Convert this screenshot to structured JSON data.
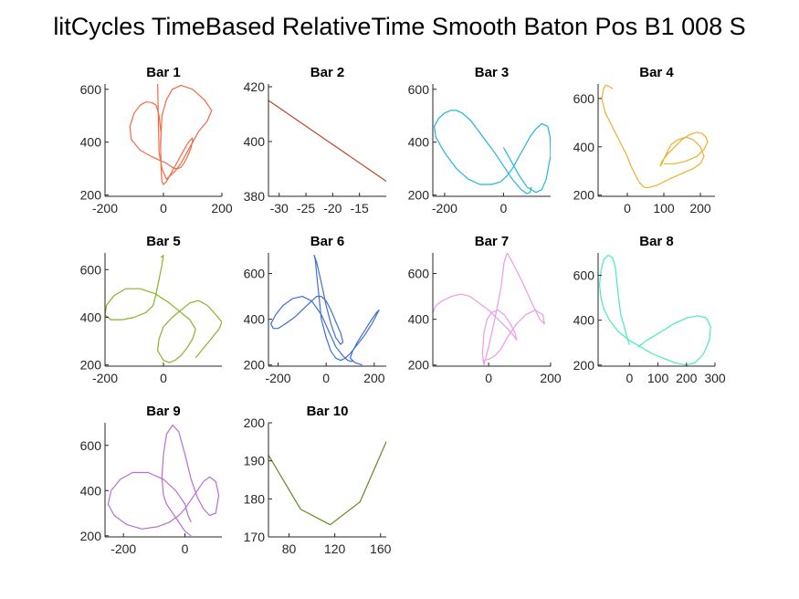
{
  "figure": {
    "suptitle": "litCycles TimeBased RelativeTime Smooth Baton Pos B1 008 S"
  },
  "chart_data": [
    {
      "type": "line",
      "title": "Bar 1",
      "color": "#F36A45",
      "xlim": [
        -200,
        200
      ],
      "ylim": [
        195,
        620
      ],
      "xticks": [
        -200,
        0,
        200
      ],
      "yticks": [
        200,
        400,
        600
      ],
      "series": [
        {
          "x": [
            -10,
            -8,
            -12,
            -15,
            -20,
            -25,
            -40,
            -60,
            -80,
            -100,
            -115,
            -110,
            -80,
            -40,
            -10,
            10,
            20,
            30,
            40,
            50,
            60,
            70,
            80,
            95,
            100,
            98,
            90,
            80,
            70,
            60,
            50,
            40,
            30,
            20,
            10,
            0,
            -5,
            -8,
            -10,
            -5,
            10,
            30,
            60,
            100,
            140,
            165,
            150,
            120,
            100,
            80,
            60,
            40,
            20,
            10,
            -5,
            -15,
            -20
          ],
          "y": [
            380,
            430,
            470,
            500,
            520,
            540,
            550,
            552,
            540,
            510,
            460,
            410,
            370,
            345,
            330,
            320,
            312,
            305,
            300,
            300,
            305,
            320,
            340,
            380,
            410,
            415,
            405,
            390,
            370,
            350,
            330,
            310,
            290,
            270,
            250,
            240,
            250,
            300,
            400,
            500,
            560,
            600,
            615,
            600,
            560,
            520,
            480,
            440,
            400,
            360,
            320,
            290,
            270,
            260,
            300,
            360,
            620
          ]
        }
      ]
    },
    {
      "type": "line",
      "title": "Bar 2",
      "color": "#C0462A",
      "xlim": [
        -32,
        -10
      ],
      "ylim": [
        380,
        421
      ],
      "xticks": [
        -30,
        -25,
        -20,
        -15
      ],
      "yticks": [
        380,
        400,
        420
      ],
      "series": [
        {
          "x": [
            -32,
            -10
          ],
          "y": [
            415,
            385.5
          ]
        }
      ]
    },
    {
      "type": "line",
      "title": "Bar 3",
      "color": "#1FB8D6",
      "xlim": [
        -240,
        160
      ],
      "ylim": [
        195,
        620
      ],
      "xticks": [
        -200,
        0
      ],
      "yticks": [
        200,
        400,
        600
      ],
      "series": [
        {
          "x": [
            0,
            10,
            20,
            30,
            50,
            80,
            110,
            130,
            145,
            160,
            158,
            150,
            130,
            110,
            90,
            70,
            50,
            30,
            10,
            -10,
            -40,
            -80,
            -120,
            -160,
            -200,
            -230,
            -235,
            -220,
            -200,
            -180,
            -160,
            -140,
            -110,
            -70,
            -30,
            0,
            30,
            60,
            80,
            90,
            95
          ],
          "y": [
            380,
            360,
            340,
            320,
            280,
            230,
            210,
            220,
            260,
            350,
            420,
            460,
            470,
            450,
            420,
            380,
            340,
            300,
            270,
            250,
            240,
            240,
            260,
            300,
            360,
            420,
            460,
            490,
            510,
            520,
            520,
            510,
            480,
            420,
            360,
            310,
            260,
            220,
            205,
            210,
            230
          ]
        }
      ]
    },
    {
      "type": "line",
      "title": "Bar 4",
      "color": "#E8B12C",
      "xlim": [
        -80,
        240
      ],
      "ylim": [
        195,
        660
      ],
      "xticks": [
        0,
        100,
        200
      ],
      "yticks": [
        200,
        400,
        600
      ],
      "series": [
        {
          "x": [
            -40,
            -50,
            -60,
            -65,
            -70,
            -60,
            -40,
            -20,
            0,
            10,
            20,
            30,
            40,
            50,
            60,
            80,
            100,
            120,
            150,
            180,
            200,
            210,
            200,
            180,
            160,
            140,
            120,
            110,
            100,
            95,
            90,
            95,
            110,
            130,
            150,
            170,
            190,
            205,
            215,
            220,
            210,
            190,
            160,
            130,
            100
          ],
          "y": [
            640,
            650,
            655,
            640,
            600,
            540,
            480,
            420,
            360,
            320,
            290,
            260,
            240,
            230,
            232,
            240,
            255,
            270,
            290,
            310,
            330,
            360,
            400,
            430,
            440,
            430,
            410,
            380,
            350,
            330,
            320,
            340,
            370,
            400,
            430,
            450,
            460,
            455,
            440,
            420,
            390,
            360,
            340,
            330,
            330
          ]
        }
      ]
    },
    {
      "type": "line",
      "title": "Bar 5",
      "color": "#8AB22A",
      "xlim": [
        -200,
        200
      ],
      "ylim": [
        195,
        670
      ],
      "xticks": [
        -200,
        0
      ],
      "yticks": [
        200,
        400,
        600
      ],
      "series": [
        {
          "x": [
            -10,
            0,
            -5,
            -15,
            -25,
            -35,
            -60,
            -100,
            -140,
            -180,
            -200,
            -195,
            -170,
            -130,
            -80,
            -30,
            20,
            60,
            90,
            110,
            100,
            80,
            60,
            40,
            20,
            0,
            -20,
            -15,
            0,
            30,
            60,
            90,
            120,
            150,
            180,
            200,
            190,
            170,
            150,
            130,
            110
          ],
          "y": [
            650,
            660,
            620,
            560,
            500,
            450,
            420,
            400,
            390,
            390,
            410,
            450,
            490,
            520,
            520,
            500,
            460,
            420,
            390,
            350,
            310,
            270,
            240,
            220,
            210,
            220,
            260,
            310,
            360,
            400,
            430,
            460,
            470,
            450,
            410,
            380,
            350,
            320,
            290,
            260,
            230
          ]
        }
      ]
    },
    {
      "type": "line",
      "title": "Bar 6",
      "color": "#3E6FD2",
      "xlim": [
        -240,
        250
      ],
      "ylim": [
        195,
        690
      ],
      "xticks": [
        -200,
        0,
        200
      ],
      "yticks": [
        200,
        400,
        600
      ],
      "series": [
        {
          "x": [
            150,
            120,
            100,
            110,
            130,
            160,
            190,
            210,
            220,
            210,
            190,
            160,
            130,
            100,
            80,
            60,
            40,
            20,
            0,
            -20,
            -30,
            -40,
            -45,
            -50,
            -40,
            -20,
            0,
            20,
            40,
            60,
            70,
            60,
            40,
            20,
            0,
            -20,
            -40,
            -60,
            -90,
            -130,
            -170,
            -200,
            -220,
            -230,
            -210,
            -180,
            -140,
            -100,
            -60,
            -20,
            10,
            40,
            70,
            90,
            110
          ],
          "y": [
            200,
            210,
            230,
            260,
            300,
            350,
            400,
            430,
            440,
            420,
            380,
            330,
            290,
            250,
            230,
            220,
            230,
            260,
            320,
            400,
            500,
            600,
            660,
            680,
            650,
            560,
            460,
            380,
            320,
            290,
            300,
            340,
            390,
            440,
            480,
            500,
            500,
            480,
            450,
            410,
            380,
            360,
            360,
            380,
            420,
            460,
            490,
            500,
            480,
            420,
            350,
            280,
            240,
            220,
            215
          ]
        }
      ]
    },
    {
      "type": "line",
      "title": "Bar 7",
      "color": "#EB9BE8",
      "xlim": [
        -180,
        200
      ],
      "ylim": [
        195,
        690
      ],
      "xticks": [
        0,
        200
      ],
      "yticks": [
        200,
        400,
        600
      ],
      "series": [
        {
          "x": [
            -180,
            -170,
            -150,
            -120,
            -90,
            -60,
            -30,
            0,
            30,
            60,
            80,
            90,
            85,
            70,
            50,
            30,
            10,
            -5,
            -15,
            -20,
            -15,
            0,
            20,
            40,
            50,
            60,
            80,
            110,
            140,
            165,
            180,
            175,
            150,
            120,
            90,
            60,
            40,
            20,
            0,
            -20
          ],
          "y": [
            430,
            460,
            480,
            500,
            510,
            500,
            470,
            440,
            400,
            360,
            330,
            310,
            340,
            380,
            420,
            440,
            430,
            400,
            340,
            250,
            200,
            280,
            400,
            540,
            650,
            690,
            640,
            560,
            470,
            400,
            380,
            420,
            440,
            420,
            380,
            320,
            270,
            240,
            225,
            220
          ]
        }
      ]
    },
    {
      "type": "line",
      "title": "Bar 8",
      "color": "#46EBC1",
      "xlim": [
        -110,
        300
      ],
      "ylim": [
        195,
        700
      ],
      "xticks": [
        0,
        100,
        200,
        300
      ],
      "yticks": [
        200,
        400,
        600
      ],
      "series": [
        {
          "x": [
            0,
            -10,
            -20,
            -30,
            -35,
            -40,
            -45,
            -50,
            -60,
            -75,
            -90,
            -100,
            -105,
            -100,
            -90,
            -70,
            -40,
            0,
            40,
            80,
            120,
            160,
            200,
            230,
            260,
            280,
            285,
            270,
            240,
            200,
            150,
            100,
            60,
            40,
            30
          ],
          "y": [
            290,
            330,
            380,
            420,
            470,
            520,
            580,
            640,
            680,
            690,
            670,
            620,
            560,
            500,
            450,
            400,
            350,
            310,
            280,
            250,
            230,
            210,
            200,
            210,
            250,
            310,
            370,
            410,
            420,
            410,
            380,
            340,
            310,
            290,
            280
          ]
        }
      ]
    },
    {
      "type": "line",
      "title": "Bar 9",
      "color": "#B66ED6",
      "xlim": [
        -260,
        120
      ],
      "ylim": [
        195,
        700
      ],
      "xticks": [
        -200,
        0
      ],
      "yticks": [
        200,
        400,
        600
      ],
      "series": [
        {
          "x": [
            20,
            0,
            -20,
            -40,
            -60,
            -70,
            -75,
            -70,
            -60,
            -40,
            -20,
            0,
            20,
            40,
            60,
            80,
            100,
            110,
            100,
            80,
            60,
            40,
            20,
            0,
            -20,
            -50,
            -90,
            -140,
            -190,
            -230,
            -250,
            -240,
            -210,
            -170,
            -120,
            -70,
            -30,
            0,
            10,
            20
          ],
          "y": [
            200,
            220,
            260,
            300,
            340,
            380,
            460,
            560,
            650,
            690,
            660,
            560,
            450,
            370,
            320,
            290,
            300,
            380,
            440,
            460,
            440,
            400,
            360,
            320,
            290,
            260,
            240,
            230,
            250,
            290,
            340,
            400,
            450,
            480,
            480,
            450,
            400,
            340,
            290,
            260
          ]
        }
      ]
    },
    {
      "type": "line",
      "title": "Bar 10",
      "color": "#5F8A1E",
      "xlim": [
        62,
        165
      ],
      "ylim": [
        170,
        200
      ],
      "xticks": [
        80,
        120,
        160
      ],
      "yticks": [
        170,
        180,
        190,
        200
      ],
      "series": [
        {
          "x": [
            62,
            90,
            116,
            142,
            165
          ],
          "y": [
            191.5,
            177.3,
            173.2,
            179.2,
            195
          ]
        }
      ]
    }
  ]
}
